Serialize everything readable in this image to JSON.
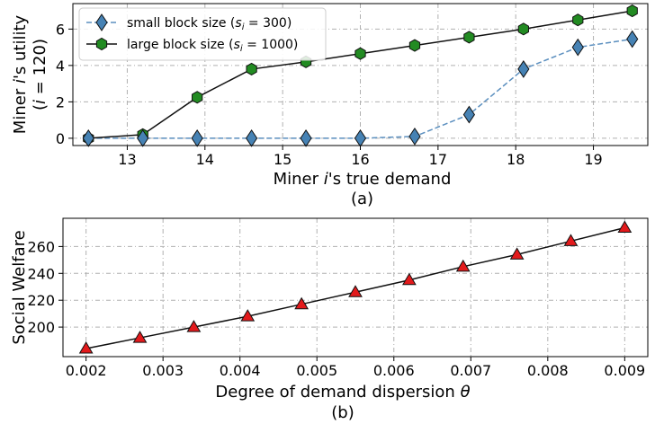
{
  "chart_data": [
    {
      "type": "line",
      "panel_label": "(a)",
      "xlabel": "Miner i's true demand",
      "ylabel": "Miner i's utility (i = 120)",
      "xlim": [
        12.3,
        19.7
      ],
      "ylim": [
        -0.4,
        7.4
      ],
      "x_ticks": [
        13,
        14,
        15,
        16,
        17,
        18,
        19
      ],
      "y_ticks": [
        0,
        2,
        4,
        6
      ],
      "grid": true,
      "legend_position": "top-left",
      "x": [
        12.5,
        13.2,
        13.9,
        14.6,
        15.3,
        16.0,
        16.7,
        17.4,
        18.1,
        18.8,
        19.5
      ],
      "series": [
        {
          "name": "small block size (s_i = 300)",
          "name_prefix": "small block size (",
          "name_math": "s",
          "name_sub": "i",
          "name_suffix": " = 300)",
          "color": "#4682b4",
          "line_color": "#5b8fbf",
          "line_style": "dashed",
          "marker": "diamond",
          "values": [
            0.0,
            0.0,
            0.0,
            0.0,
            0.0,
            0.0,
            0.1,
            1.3,
            3.8,
            5.0,
            5.45
          ]
        },
        {
          "name": "large block size (s_i = 1000)",
          "name_prefix": "large block size (",
          "name_math": "s",
          "name_sub": "i",
          "name_suffix": " = 1000)",
          "color": "#228b22",
          "line_color": "#111111",
          "line_style": "solid",
          "marker": "hexagon",
          "values": [
            0.0,
            0.2,
            2.25,
            3.8,
            4.2,
            4.65,
            5.1,
            5.55,
            6.0,
            6.5,
            7.0
          ]
        }
      ]
    },
    {
      "type": "line",
      "panel_label": "(b)",
      "xlabel": "Degree of demand dispersion θ",
      "ylabel": "Social Welfare",
      "xlim": [
        0.0017,
        0.0093
      ],
      "ylim": [
        178,
        281
      ],
      "x_ticks": [
        "0.002",
        "0.003",
        "0.004",
        "0.005",
        "0.006",
        "0.007",
        "0.008",
        "0.009"
      ],
      "y_ticks": [
        200,
        220,
        240,
        260
      ],
      "grid": true,
      "x": [
        0.002,
        0.0027,
        0.0034,
        0.0041,
        0.0048,
        0.0055,
        0.0062,
        0.0069,
        0.0076,
        0.0083,
        0.009
      ],
      "series": [
        {
          "color": "#e31a1c",
          "line_color": "#111111",
          "line_style": "solid",
          "marker": "triangle",
          "values": [
            184,
            192,
            200,
            208,
            217,
            226,
            235,
            245,
            254,
            264,
            274
          ]
        }
      ]
    }
  ]
}
